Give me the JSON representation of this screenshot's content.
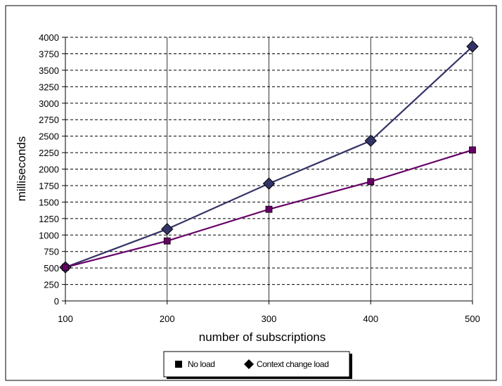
{
  "chart_data": {
    "type": "line",
    "title": "",
    "xlabel": "number of subscriptions",
    "ylabel": "milliseconds",
    "x": [
      100,
      200,
      300,
      400,
      500
    ],
    "xlim": [
      100,
      500
    ],
    "ylim": [
      0,
      4000
    ],
    "xticks": [
      "100",
      "200",
      "300",
      "400",
      "500"
    ],
    "yticks": [
      "0",
      "250",
      "500",
      "750",
      "1000",
      "1250",
      "1500",
      "1750",
      "2000",
      "2250",
      "2500",
      "2750",
      "3000",
      "3250",
      "3500",
      "3750",
      "4000"
    ],
    "grid": {
      "horizontal": "dashed",
      "vertical": "solid"
    },
    "legend_position": "bottom",
    "series": [
      {
        "name": "No load",
        "values": [
          510,
          910,
          1390,
          1810,
          2290
        ],
        "color": "#660066",
        "marker": "square"
      },
      {
        "name": "Context change load",
        "values": [
          510,
          1090,
          1780,
          2430,
          3860
        ],
        "color": "#333366",
        "marker": "diamond"
      }
    ]
  }
}
